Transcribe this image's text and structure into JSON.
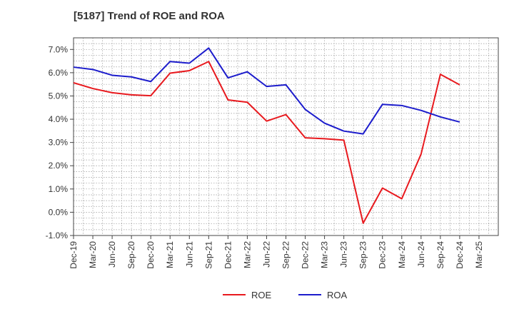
{
  "chart_data": {
    "type": "line",
    "title": "[5187]  Trend of ROE and ROA",
    "xlabel": "",
    "ylabel": "",
    "x": [
      "Dec-19",
      "Mar-20",
      "Jun-20",
      "Sep-20",
      "Dec-20",
      "Mar-21",
      "Jun-21",
      "Sep-21",
      "Dec-21",
      "Mar-22",
      "Jun-22",
      "Sep-22",
      "Dec-22",
      "Mar-23",
      "Jun-23",
      "Sep-23",
      "Dec-23",
      "Mar-24",
      "Jun-24",
      "Sep-24",
      "Dec-24",
      "Mar-25"
    ],
    "ylim": [
      -1.0,
      7.5
    ],
    "yticks": [
      -1.0,
      0.0,
      1.0,
      2.0,
      3.0,
      4.0,
      5.0,
      6.0,
      7.0
    ],
    "ytick_labels": [
      "-1.0%",
      "0.0%",
      "1.0%",
      "2.0%",
      "3.0%",
      "4.0%",
      "5.0%",
      "6.0%",
      "7.0%"
    ],
    "grid": true,
    "legend_position": "bottom-center",
    "series": [
      {
        "name": "ROE",
        "color": "#e8191e",
        "values": [
          5.57,
          5.32,
          5.14,
          5.05,
          5.01,
          5.98,
          6.09,
          6.48,
          4.83,
          4.73,
          3.92,
          4.2,
          3.2,
          3.16,
          3.1,
          -0.47,
          1.04,
          0.58,
          2.5,
          5.93,
          5.48,
          null
        ]
      },
      {
        "name": "ROA",
        "color": "#1c1ccc",
        "values": [
          6.24,
          6.14,
          5.89,
          5.82,
          5.62,
          6.48,
          6.41,
          7.06,
          5.78,
          6.04,
          5.41,
          5.48,
          4.42,
          3.83,
          3.49,
          3.37,
          4.64,
          4.59,
          4.38,
          4.1,
          3.88,
          null
        ]
      }
    ]
  }
}
